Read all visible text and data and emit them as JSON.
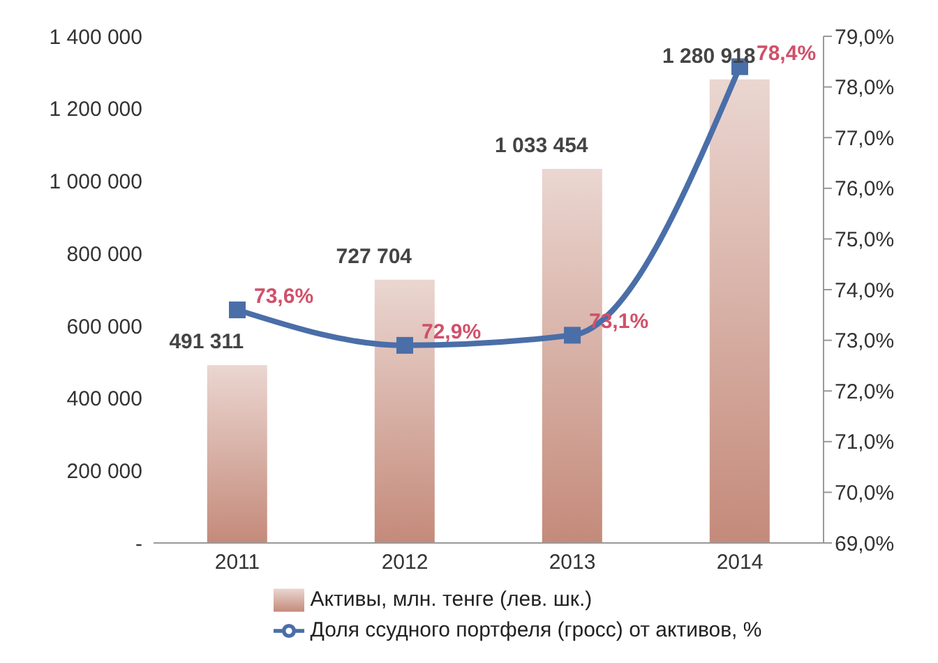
{
  "chart_data": {
    "type": "bar",
    "categories": [
      "2011",
      "2012",
      "2013",
      "2014"
    ],
    "series": [
      {
        "name": "Активы, млн. тенге (лев. шк.)",
        "color": "#c48a7a",
        "values": [
          491311,
          727704,
          1033454,
          1280918
        ],
        "value_labels": [
          "491 311",
          "727 704",
          "1 033 454",
          "1 280 918"
        ]
      },
      {
        "name": "Доля ссудного портфеля (гросс) от активов, %",
        "type": "line",
        "axis": "y2",
        "color": "#4a6ea8",
        "values": [
          73.6,
          72.9,
          73.1,
          78.4
        ],
        "value_labels": [
          "73,6%",
          "72,9%",
          "73,1%",
          "78,4%"
        ]
      }
    ],
    "ylim": [
      0,
      1400000
    ],
    "yticks": [
      {
        "value": 0,
        "label": "-"
      },
      {
        "value": 200000,
        "label": "200 000"
      },
      {
        "value": 400000,
        "label": "400 000"
      },
      {
        "value": 600000,
        "label": "600 000"
      },
      {
        "value": 800000,
        "label": "800 000"
      },
      {
        "value": 1000000,
        "label": "1 000 000"
      },
      {
        "value": 1200000,
        "label": "1 200 000"
      },
      {
        "value": 1400000,
        "label": "1 400 000"
      }
    ],
    "y2lim": [
      69,
      79
    ],
    "y2ticks": [
      {
        "value": 69,
        "label": "69,0%"
      },
      {
        "value": 70,
        "label": "70,0%"
      },
      {
        "value": 71,
        "label": "71,0%"
      },
      {
        "value": 72,
        "label": "72,0%"
      },
      {
        "value": 73,
        "label": "73,0%"
      },
      {
        "value": 74,
        "label": "74,0%"
      },
      {
        "value": 75,
        "label": "75,0%"
      },
      {
        "value": 76,
        "label": "76,0%"
      },
      {
        "value": 77,
        "label": "77,0%"
      },
      {
        "value": 78,
        "label": "78,0%"
      },
      {
        "value": 79,
        "label": "79,0%"
      }
    ],
    "marker": "square",
    "legend": "bottom",
    "grid": false
  }
}
